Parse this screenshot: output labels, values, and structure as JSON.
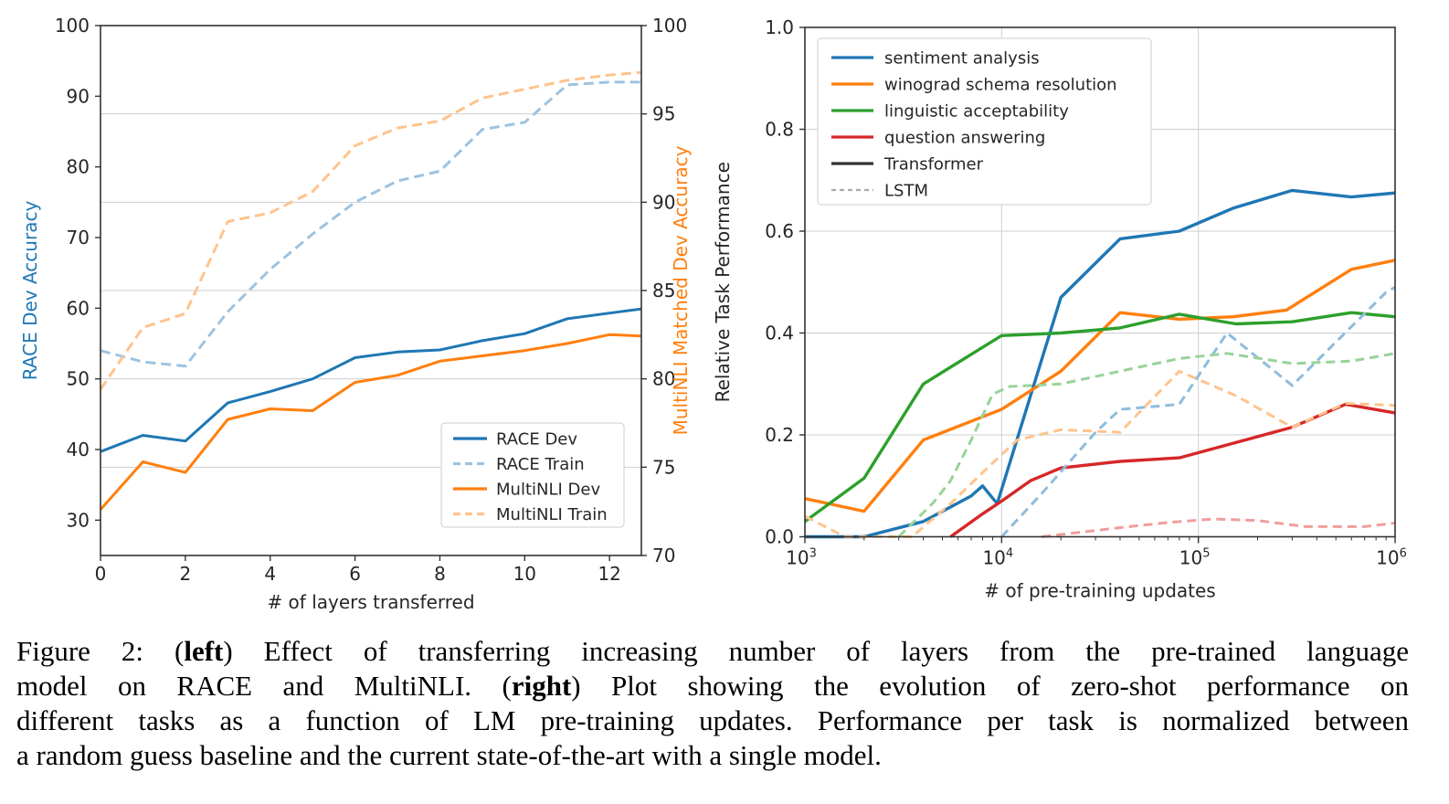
{
  "figure": {
    "caption_lines": [
      {
        "justify": true,
        "segments": [
          {
            "t": "Figure 2:  ("
          },
          {
            "t": "left",
            "b": true
          },
          {
            "t": ") Effect of transferring increasing number of layers from the pre-trained language"
          }
        ]
      },
      {
        "justify": true,
        "segments": [
          {
            "t": "model on RACE and MultiNLI. ("
          },
          {
            "t": "right",
            "b": true
          },
          {
            "t": ") Plot showing the evolution of zero-shot performance on"
          }
        ]
      },
      {
        "justify": true,
        "segments": [
          {
            "t": "different tasks as a function of LM pre-training updates. Performance per task is normalized between"
          }
        ]
      },
      {
        "justify": false,
        "segments": [
          {
            "t": "a random guess baseline and the current state-of-the-art with a single model."
          }
        ]
      }
    ]
  },
  "chart_data": [
    {
      "type": "line",
      "title": "",
      "xlabel": "# of layers transferred",
      "ylabel_left": "RACE Dev Accuracy",
      "ylabel_right": "MultiNLI Matched Dev Accuracy",
      "ylabel_left_color": "#1f77b4",
      "ylabel_right_color": "#ff7f0e",
      "xlim": [
        0,
        12.75
      ],
      "xtick_labels": [
        "0",
        "2",
        "4",
        "6",
        "8",
        "10",
        "12"
      ],
      "ylim_left": [
        25,
        100
      ],
      "ytick_labels_left": [
        "30",
        "40",
        "50",
        "60",
        "70",
        "80",
        "90",
        "100"
      ],
      "ylim_right": [
        70,
        100
      ],
      "ytick_labels_right": [
        "70",
        "75",
        "80",
        "85",
        "90",
        "95",
        "100"
      ],
      "gridlines_at_right_values": [
        75,
        80,
        85,
        90,
        95
      ],
      "x": [
        0,
        1,
        2,
        3,
        4,
        5,
        6,
        7,
        8,
        9,
        10,
        11,
        12,
        13
      ],
      "series": [
        {
          "name": "RACE Dev",
          "axis": "left",
          "line": "solid",
          "color": "#1f77b4",
          "values": [
            39.7,
            42.0,
            41.2,
            46.6,
            48.2,
            50.0,
            53.0,
            53.8,
            54.1,
            55.4,
            56.4,
            58.5,
            59.3,
            60.1
          ]
        },
        {
          "name": "RACE Train",
          "axis": "left",
          "line": "dashed",
          "color": "#9dc3e0",
          "values": [
            54.0,
            52.4,
            51.8,
            59.5,
            65.5,
            70.5,
            75.0,
            78.0,
            79.4,
            85.3,
            86.3,
            91.6,
            92.0,
            92.0
          ]
        },
        {
          "name": "MultiNLI Dev",
          "axis": "right",
          "line": "solid",
          "color": "#ff7f0e",
          "values": [
            72.6,
            75.3,
            74.7,
            77.7,
            78.3,
            78.2,
            79.8,
            80.2,
            81.0,
            81.3,
            81.6,
            82.0,
            82.5,
            82.4
          ]
        },
        {
          "name": "MultiNLI Train",
          "axis": "right",
          "line": "dashed",
          "color": "#ffc38d",
          "values": [
            79.4,
            82.9,
            83.7,
            88.9,
            89.4,
            90.6,
            93.2,
            94.2,
            94.6,
            95.9,
            96.4,
            96.9,
            97.2,
            97.4
          ]
        }
      ],
      "legend": {
        "position": "lower right",
        "entries": [
          {
            "label": "RACE Dev",
            "color": "#1f77b4",
            "line": "solid"
          },
          {
            "label": "RACE Train",
            "color": "#9dc3e0",
            "line": "dashed"
          },
          {
            "label": "MultiNLI Dev",
            "color": "#ff7f0e",
            "line": "solid"
          },
          {
            "label": "MultiNLI Train",
            "color": "#ffc38d",
            "line": "dashed"
          }
        ]
      }
    },
    {
      "type": "line",
      "title": "",
      "xlabel": "# of pre-training updates",
      "ylabel": "Relative Task Performance",
      "xscale": "log",
      "xlim": [
        1000,
        1000000
      ],
      "xtick_exponents": [
        3,
        4,
        5,
        6
      ],
      "xtick_base": "10",
      "ylim": [
        0,
        1.0
      ],
      "ytick_labels": [
        "0.0",
        "0.2",
        "0.4",
        "0.6",
        "0.8",
        "1.0"
      ],
      "grid_y_values": [
        0.2,
        0.4,
        0.6,
        0.8
      ],
      "grid_x_values": [
        10000,
        100000
      ],
      "series": [
        {
          "name": "sentiment analysis",
          "model": "Transformer",
          "line": "solid",
          "color": "#1f77b4",
          "points": [
            [
              1000,
              0.0
            ],
            [
              2000,
              0.0
            ],
            [
              4000,
              0.03
            ],
            [
              7000,
              0.08
            ],
            [
              8000,
              0.1
            ],
            [
              9500,
              0.065
            ],
            [
              20000,
              0.47
            ],
            [
              40000,
              0.585
            ],
            [
              80000,
              0.6
            ],
            [
              150000,
              0.645
            ],
            [
              300000,
              0.68
            ],
            [
              600000,
              0.667
            ],
            [
              1000000,
              0.675
            ]
          ]
        },
        {
          "name": "winograd schema resolution",
          "model": "Transformer",
          "line": "solid",
          "color": "#ff7f0e",
          "points": [
            [
              1000,
              0.075
            ],
            [
              2000,
              0.05
            ],
            [
              4000,
              0.19
            ],
            [
              10000,
              0.25
            ],
            [
              20000,
              0.325
            ],
            [
              40000,
              0.44
            ],
            [
              80000,
              0.427
            ],
            [
              150000,
              0.432
            ],
            [
              280000,
              0.445
            ],
            [
              600000,
              0.525
            ],
            [
              1000000,
              0.543
            ]
          ]
        },
        {
          "name": "linguistic acceptability",
          "model": "Transformer",
          "line": "solid",
          "color": "#2ca02c",
          "points": [
            [
              1000,
              0.03
            ],
            [
              2000,
              0.115
            ],
            [
              4000,
              0.3
            ],
            [
              10000,
              0.395
            ],
            [
              20000,
              0.4
            ],
            [
              40000,
              0.41
            ],
            [
              80000,
              0.437
            ],
            [
              155000,
              0.418
            ],
            [
              300000,
              0.422
            ],
            [
              600000,
              0.44
            ],
            [
              1000000,
              0.432
            ]
          ]
        },
        {
          "name": "question answering",
          "model": "Transformer",
          "line": "solid",
          "color": "#d62728",
          "points": [
            [
              5500,
              0.0
            ],
            [
              8000,
              0.045
            ],
            [
              10000,
              0.07
            ],
            [
              14000,
              0.11
            ],
            [
              20000,
              0.135
            ],
            [
              40000,
              0.148
            ],
            [
              80000,
              0.155
            ],
            [
              155000,
              0.185
            ],
            [
              300000,
              0.215
            ],
            [
              560000,
              0.26
            ],
            [
              1000000,
              0.243
            ]
          ]
        },
        {
          "name": "sentiment analysis (LSTM)",
          "model": "LSTM",
          "line": "dashed",
          "color": "#8fbcdc",
          "points": [
            [
              10000,
              0.0
            ],
            [
              16000,
              0.085
            ],
            [
              30000,
              0.205
            ],
            [
              40000,
              0.25
            ],
            [
              80000,
              0.26
            ],
            [
              140000,
              0.4
            ],
            [
              300000,
              0.297
            ],
            [
              900000,
              0.48
            ],
            [
              1000000,
              0.49
            ]
          ]
        },
        {
          "name": "winograd schema resolution (LSTM)",
          "model": "LSTM",
          "line": "dashed",
          "color": "#ffc38d",
          "points": [
            [
              1000,
              0.04
            ],
            [
              1600,
              0.0
            ],
            [
              3500,
              0.0
            ],
            [
              5500,
              0.065
            ],
            [
              9000,
              0.145
            ],
            [
              12000,
              0.19
            ],
            [
              20000,
              0.21
            ],
            [
              40000,
              0.205
            ],
            [
              80000,
              0.325
            ],
            [
              155000,
              0.277
            ],
            [
              300000,
              0.215
            ],
            [
              560000,
              0.262
            ],
            [
              1000000,
              0.258
            ]
          ]
        },
        {
          "name": "linguistic acceptability (LSTM)",
          "model": "LSTM",
          "line": "dashed",
          "color": "#98d39a",
          "points": [
            [
              3000,
              0.0
            ],
            [
              4500,
              0.067
            ],
            [
              5500,
              0.11
            ],
            [
              7000,
              0.19
            ],
            [
              9000,
              0.28
            ],
            [
              11000,
              0.295
            ],
            [
              20000,
              0.3
            ],
            [
              40000,
              0.325
            ],
            [
              80000,
              0.35
            ],
            [
              140000,
              0.36
            ],
            [
              300000,
              0.34
            ],
            [
              600000,
              0.345
            ],
            [
              1000000,
              0.36
            ]
          ]
        },
        {
          "name": "question answering (LSTM)",
          "model": "LSTM",
          "line": "dashed",
          "color": "#f09d9d",
          "points": [
            [
              16000,
              0.0
            ],
            [
              40000,
              0.018
            ],
            [
              70000,
              0.028
            ],
            [
              120000,
              0.035
            ],
            [
              200000,
              0.032
            ],
            [
              350000,
              0.02
            ],
            [
              700000,
              0.02
            ],
            [
              1000000,
              0.027
            ]
          ]
        }
      ],
      "legend": {
        "position": "upper left",
        "entries": [
          {
            "label": "sentiment analysis",
            "color": "#1f77b4",
            "line": "solid"
          },
          {
            "label": "winograd schema resolution",
            "color": "#ff7f0e",
            "line": "solid"
          },
          {
            "label": "linguistic acceptability",
            "color": "#2ca02c",
            "line": "solid"
          },
          {
            "label": "question answering",
            "color": "#d62728",
            "line": "solid"
          },
          {
            "label": "Transformer",
            "color": "#333333",
            "line": "solid"
          },
          {
            "label": "LSTM",
            "color": "#aaaaaa",
            "line": "dashed"
          }
        ]
      },
      "colors": {
        "spine": "#333333",
        "gridline": "#cccccc"
      }
    }
  ]
}
